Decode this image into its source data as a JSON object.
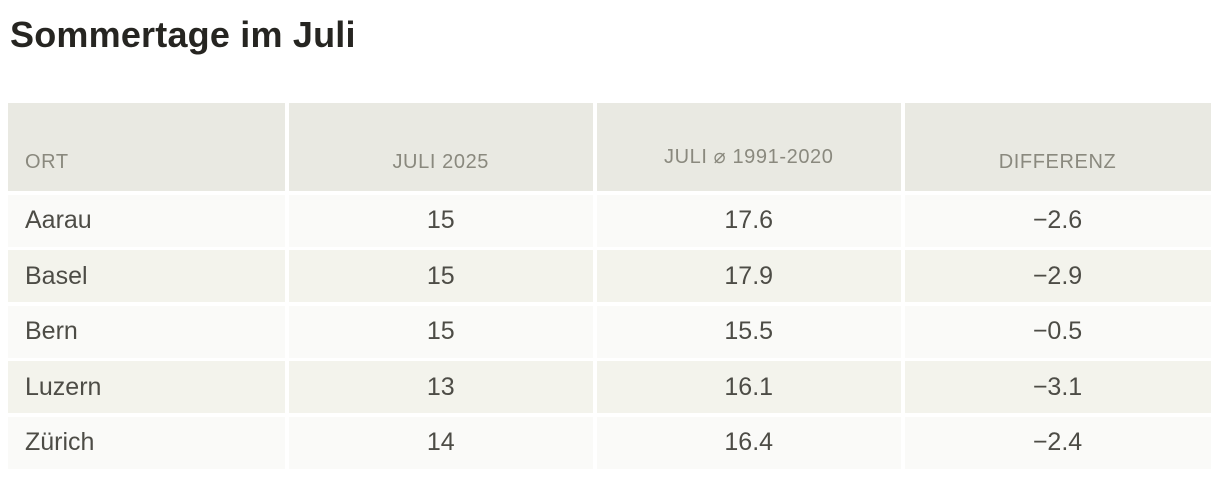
{
  "title": "Sommertage im Juli",
  "table": {
    "columns": [
      {
        "key": "ort",
        "label": "ORT"
      },
      {
        "key": "juli2025",
        "label": "JULI 2025"
      },
      {
        "key": "avg19912020",
        "label": "JULI ⌀ 1991-2020"
      },
      {
        "key": "differenz",
        "label": "DIFFERENZ"
      }
    ],
    "rows": [
      {
        "ort": "Aarau",
        "juli2025": "15",
        "avg19912020": "17.6",
        "differenz": "−2.6"
      },
      {
        "ort": "Basel",
        "juli2025": "15",
        "avg19912020": "17.9",
        "differenz": "−2.9"
      },
      {
        "ort": "Bern",
        "juli2025": "15",
        "avg19912020": "15.5",
        "differenz": "−0.5"
      },
      {
        "ort": "Luzern",
        "juli2025": "13",
        "avg19912020": "16.1",
        "differenz": "−3.1"
      },
      {
        "ort": "Zürich",
        "juli2025": "14",
        "avg19912020": "16.4",
        "differenz": "−2.4"
      }
    ]
  },
  "chart_data": {
    "type": "table",
    "title": "Sommertage im Juli",
    "columns": [
      "ORT",
      "JULI 2025",
      "JULI ⌀ 1991-2020",
      "DIFFERENZ"
    ],
    "rows": [
      [
        "Aarau",
        15,
        17.6,
        -2.6
      ],
      [
        "Basel",
        15,
        17.9,
        -2.9
      ],
      [
        "Bern",
        15,
        15.5,
        -0.5
      ],
      [
        "Luzern",
        13,
        16.1,
        -3.1
      ],
      [
        "Zürich",
        14,
        16.4,
        -2.4
      ]
    ]
  },
  "colors": {
    "title_text": "#262521",
    "header_bg": "#e9e9e2",
    "header_text": "#8a897e",
    "row_odd_bg": "#fafaf8",
    "row_even_bg": "#f3f3ec",
    "body_text": "#4d4c46"
  }
}
